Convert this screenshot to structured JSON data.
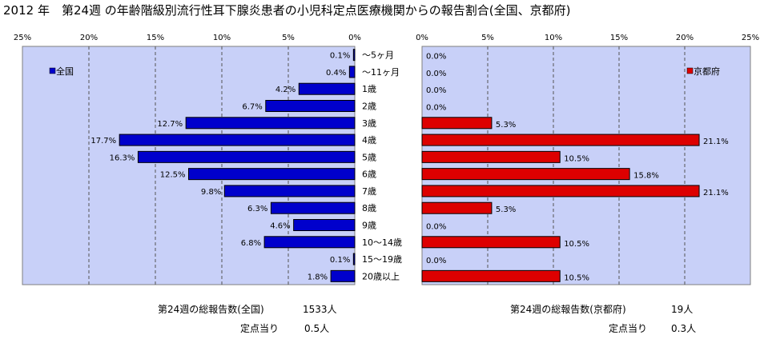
{
  "title": "2012 年　第24週 の年齢階級別流行性耳下腺炎患者の小児科定点医療機関からの報告割合(全国、京都府)",
  "colors": {
    "national": "#0000cc",
    "kyoto": "#dd0000",
    "plot_bg": "#c8d0f8"
  },
  "chart_data": [
    {
      "type": "bar",
      "orientation": "horizontal",
      "direction": "right-to-left",
      "series": [
        {
          "name": "全国",
          "values": [
            0.1,
            0.4,
            4.2,
            6.7,
            12.7,
            17.7,
            16.3,
            12.5,
            9.8,
            6.3,
            4.6,
            6.8,
            0.1,
            1.8
          ]
        }
      ],
      "categories": [
        "～5ヶ月",
        "～11ヶ月",
        "1歳",
        "2歳",
        "3歳",
        "4歳",
        "5歳",
        "6歳",
        "7歳",
        "8歳",
        "9歳",
        "10～14歳",
        "15～19歳",
        "20歳以上"
      ],
      "value_labels": [
        "0.1%",
        "0.4%",
        "4.2%",
        "6.7%",
        "12.7%",
        "17.7%",
        "16.3%",
        "12.5%",
        "9.8%",
        "6.3%",
        "4.6%",
        "6.8%",
        "0.1%",
        "1.8%"
      ],
      "xlim": [
        0,
        25
      ],
      "xticks": [
        "25%",
        "20%",
        "15%",
        "10%",
        "5%",
        "0%"
      ],
      "legend": "全国",
      "legend_position": "top-left",
      "grid": true
    },
    {
      "type": "bar",
      "orientation": "horizontal",
      "direction": "left-to-right",
      "series": [
        {
          "name": "京都府",
          "values": [
            0.0,
            0.0,
            0.0,
            0.0,
            5.3,
            21.1,
            10.5,
            15.8,
            21.1,
            5.3,
            0.0,
            10.5,
            0.0,
            10.5
          ]
        }
      ],
      "categories": [
        "～5ヶ月",
        "～11ヶ月",
        "1歳",
        "2歳",
        "3歳",
        "4歳",
        "5歳",
        "6歳",
        "7歳",
        "8歳",
        "9歳",
        "10～14歳",
        "15～19歳",
        "20歳以上"
      ],
      "value_labels": [
        "0.0%",
        "0.0%",
        "0.0%",
        "0.0%",
        "5.3%",
        "21.1%",
        "10.5%",
        "15.8%",
        "21.1%",
        "5.3%",
        "0.0%",
        "10.5%",
        "0.0%",
        "10.5%"
      ],
      "xlim": [
        0,
        25
      ],
      "xticks": [
        "0%",
        "5%",
        "10%",
        "15%",
        "20%",
        "25%"
      ],
      "legend": "京都府",
      "legend_position": "top-right",
      "grid": true
    }
  ],
  "footer": {
    "national_total_label": "第24週の総報告数(全国)",
    "national_total_value": "1533人",
    "national_per_label": "定点当り",
    "national_per_value": "0.5人",
    "kyoto_total_label": "第24週の総報告数(京都府)",
    "kyoto_total_value": "19人",
    "kyoto_per_label": "定点当り",
    "kyoto_per_value": "0.3人"
  }
}
